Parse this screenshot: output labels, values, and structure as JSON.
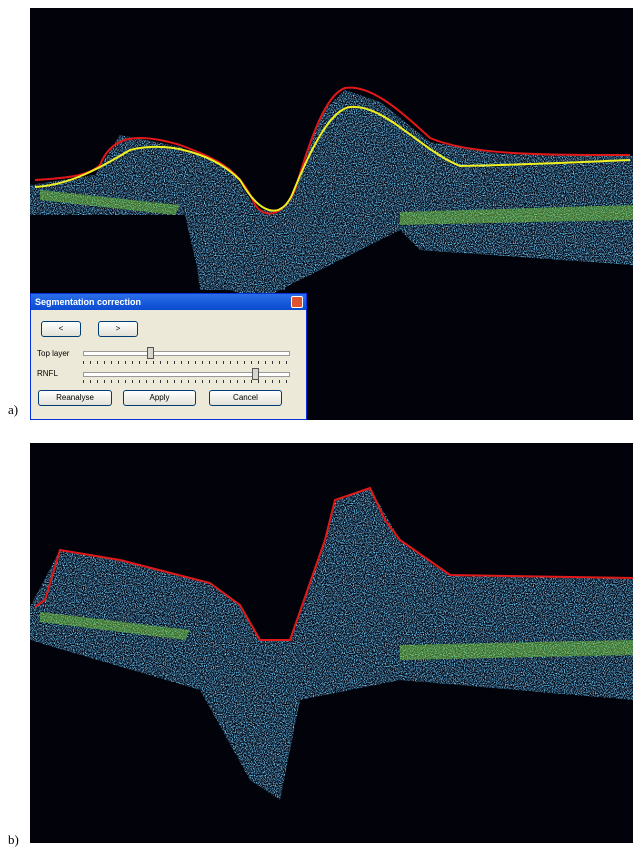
{
  "panels": [
    {
      "label": "a)",
      "dialog": {
        "title": "Segmentation correction",
        "nav_buttons": [
          "<",
          ">"
        ],
        "sliders": [
          "Top layer",
          "RNFL"
        ],
        "buttons": [
          "Reanalyse",
          "Apply",
          "Cancel"
        ]
      }
    },
    {
      "label": "b)"
    }
  ]
}
